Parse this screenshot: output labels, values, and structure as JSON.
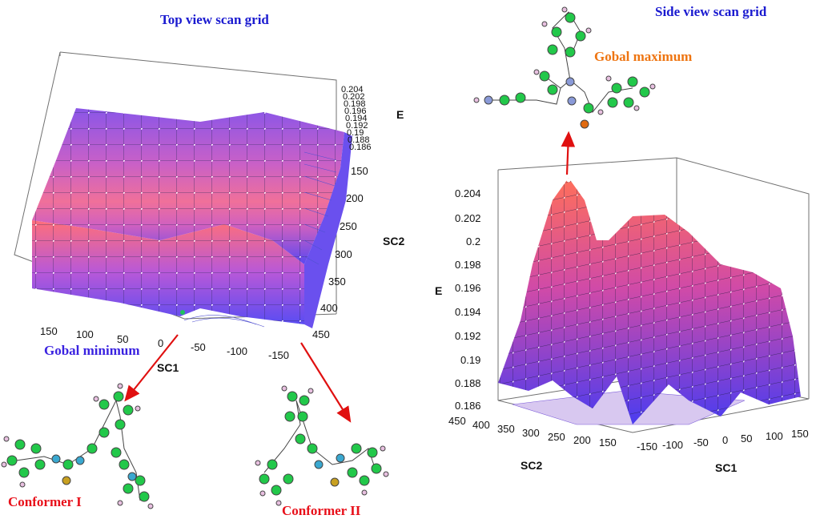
{
  "titles": {
    "top_view": "Top view scan grid",
    "side_view": "Side view scan grid"
  },
  "labels": {
    "global_minimum": "Gobal minimum",
    "global_maximum": "Gobal maximum",
    "conformer_1": "Conformer I",
    "conformer_2": "Conformer II"
  },
  "left_plot": {
    "e_axis": {
      "label": "E",
      "ticks": [
        "0.204",
        "0.202",
        "0.198",
        "0.196",
        "0.194",
        "0.192",
        "0.19",
        "0.188",
        "0.186"
      ]
    },
    "sc2_axis": {
      "label": "SC2",
      "ticks": [
        "150",
        "200",
        "250",
        "300",
        "350",
        "400",
        "450"
      ]
    },
    "sc1_axis": {
      "label": "SC1",
      "ticks": [
        "150",
        "100",
        "50",
        "0",
        "-50",
        "-100",
        "-150"
      ]
    }
  },
  "right_plot": {
    "e_axis": {
      "label": "E",
      "ticks": [
        "0.204",
        "0.202",
        "0.2",
        "0.198",
        "0.196",
        "0.194",
        "0.192",
        "0.19",
        "0.188",
        "0.186"
      ]
    },
    "sc2_axis": {
      "label": "SC2",
      "ticks": [
        "450",
        "400",
        "350",
        "300",
        "250",
        "200",
        "150"
      ]
    },
    "sc1_axis": {
      "label": "SC1",
      "ticks": [
        "-150",
        "-100",
        "-50",
        "0",
        "50",
        "100",
        "150"
      ]
    }
  },
  "colors": {
    "title_blue": "#1a1ad0",
    "label_red": "#e8101a",
    "label_orange": "#ee7410",
    "minimum_blue": "#3a22e0",
    "arrow_red": "#e01010"
  }
}
